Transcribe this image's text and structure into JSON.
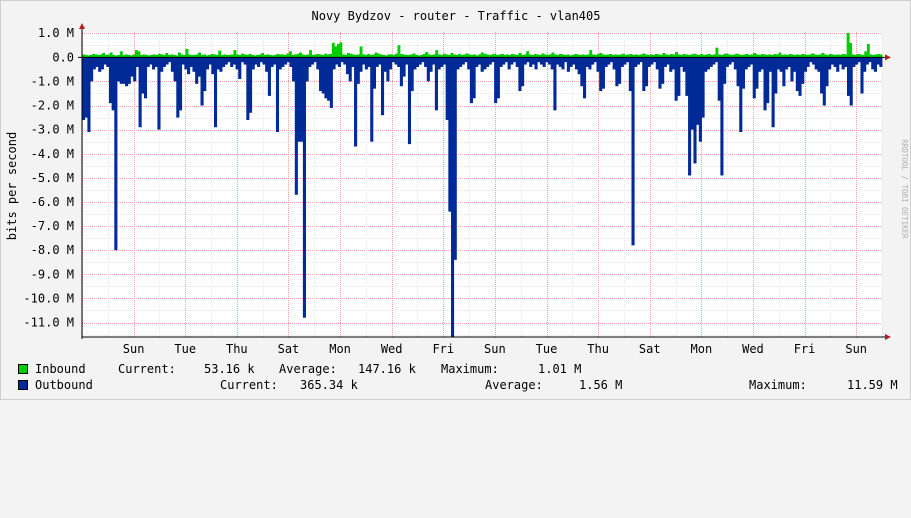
{
  "chart_data": {
    "type": "area",
    "title": "Novy Bydzov - router - Traffic - vlan405",
    "ylabel": "bits per second",
    "watermark": "RRDTOOL / TOBI OETIKER",
    "ylim": [
      -11.6,
      1.05
    ],
    "y_ticks": [
      {
        "value": 1.0,
        "label": "1.0 M"
      },
      {
        "value": 0.0,
        "label": "0.0"
      },
      {
        "value": -1.0,
        "label": "-1.0 M"
      },
      {
        "value": -2.0,
        "label": "-2.0 M"
      },
      {
        "value": -3.0,
        "label": "-3.0 M"
      },
      {
        "value": -4.0,
        "label": "-4.0 M"
      },
      {
        "value": -5.0,
        "label": "-5.0 M"
      },
      {
        "value": -6.0,
        "label": "-6.0 M"
      },
      {
        "value": -7.0,
        "label": "-7.0 M"
      },
      {
        "value": -8.0,
        "label": "-8.0 M"
      },
      {
        "value": -9.0,
        "label": "-9.0 M"
      },
      {
        "value": -10.0,
        "label": "-10.0 M"
      },
      {
        "value": -11.0,
        "label": "-11.0 M"
      }
    ],
    "days": [
      "Sun",
      "Tue",
      "Thu",
      "Sat",
      "Mon",
      "Wed",
      "Fri",
      "Sun",
      "Tue",
      "Thu",
      "Sat",
      "Mon",
      "Wed",
      "Fri",
      "Sun"
    ],
    "num_days": 15.5,
    "series": [
      {
        "name": "Inbound",
        "color": "#00cc00",
        "values": [
          0.12,
          0.1,
          0.08,
          0.1,
          0.14,
          0.12,
          0.1,
          0.12,
          0.18,
          0.1,
          0.12,
          0.2,
          0.1,
          0.08,
          0.1,
          0.25,
          0.1,
          0.12,
          0.1,
          0.08,
          0.12,
          0.3,
          0.25,
          0.1,
          0.12,
          0.1,
          0.08,
          0.1,
          0.12,
          0.1,
          0.15,
          0.12,
          0.1,
          0.18,
          0.1,
          0.12,
          0.1,
          0.08,
          0.2,
          0.12,
          0.1,
          0.35,
          0.12,
          0.1,
          0.1,
          0.12,
          0.2,
          0.1,
          0.12,
          0.08,
          0.1,
          0.14,
          0.12,
          0.1,
          0.28,
          0.1,
          0.12,
          0.1,
          0.1,
          0.12,
          0.3,
          0.12,
          0.1,
          0.15,
          0.12,
          0.1,
          0.14,
          0.1,
          0.08,
          0.1,
          0.12,
          0.18,
          0.1,
          0.12,
          0.1,
          0.08,
          0.1,
          0.14,
          0.12,
          0.12,
          0.1,
          0.16,
          0.25,
          0.1,
          0.12,
          0.14,
          0.2,
          0.12,
          0.1,
          0.12,
          0.3,
          0.1,
          0.12,
          0.14,
          0.12,
          0.1,
          0.15,
          0.12,
          0.14,
          0.6,
          0.45,
          0.55,
          0.62,
          0.12,
          0.1,
          0.18,
          0.15,
          0.12,
          0.1,
          0.12,
          0.45,
          0.12,
          0.1,
          0.14,
          0.1,
          0.12,
          0.2,
          0.15,
          0.12,
          0.1,
          0.08,
          0.12,
          0.12,
          0.1,
          0.15,
          0.5,
          0.14,
          0.12,
          0.1,
          0.1,
          0.12,
          0.16,
          0.1,
          0.08,
          0.1,
          0.14,
          0.22,
          0.12,
          0.1,
          0.12,
          0.3,
          0.12,
          0.1,
          0.15,
          0.12,
          0.1,
          0.18,
          0.12,
          0.1,
          0.14,
          0.1,
          0.12,
          0.16,
          0.12,
          0.1,
          0.12,
          0.08,
          0.12,
          0.2,
          0.15,
          0.12,
          0.1,
          0.12,
          0.15,
          0.1,
          0.12,
          0.14,
          0.1,
          0.12,
          0.1,
          0.14,
          0.12,
          0.1,
          0.18,
          0.1,
          0.12,
          0.25,
          0.12,
          0.1,
          0.14,
          0.12,
          0.1,
          0.16,
          0.12,
          0.1,
          0.12,
          0.2,
          0.12,
          0.1,
          0.14,
          0.12,
          0.1,
          0.12,
          0.08,
          0.1,
          0.14,
          0.12,
          0.1,
          0.12,
          0.1,
          0.12,
          0.3,
          0.12,
          0.1,
          0.14,
          0.18,
          0.12,
          0.1,
          0.12,
          0.14,
          0.1,
          0.12,
          0.1,
          0.12,
          0.15,
          0.1,
          0.12,
          0.14,
          0.1,
          0.12,
          0.1,
          0.12,
          0.16,
          0.12,
          0.1,
          0.12,
          0.1,
          0.14,
          0.12,
          0.1,
          0.18,
          0.12,
          0.1,
          0.14,
          0.12,
          0.22,
          0.12,
          0.1,
          0.14,
          0.12,
          0.1,
          0.12,
          0.15,
          0.12,
          0.1,
          0.14,
          0.1,
          0.12,
          0.14,
          0.1,
          0.12,
          0.4,
          0.12,
          0.1,
          0.14,
          0.16,
          0.12,
          0.1,
          0.12,
          0.15,
          0.12,
          0.1,
          0.12,
          0.14,
          0.1,
          0.12,
          0.18,
          0.12,
          0.1,
          0.14,
          0.12,
          0.1,
          0.12,
          0.1,
          0.14,
          0.12,
          0.2,
          0.1,
          0.12,
          0.1,
          0.14,
          0.12,
          0.1,
          0.12,
          0.1,
          0.14,
          0.12,
          0.1,
          0.12,
          0.16,
          0.12,
          0.1,
          0.12,
          0.18,
          0.12,
          0.1,
          0.14,
          0.12,
          0.1,
          0.12,
          0.1,
          0.14,
          0.12,
          1.01,
          0.6,
          0.12,
          0.1,
          0.14,
          0.12,
          0.1,
          0.25,
          0.55,
          0.12,
          0.1,
          0.12,
          0.14,
          0.12
        ]
      },
      {
        "name": "Outbound",
        "color": "#002a97",
        "values": [
          -2.6,
          -2.5,
          -3.1,
          -1.0,
          -0.5,
          -0.4,
          -0.6,
          -0.5,
          -0.3,
          -0.4,
          -1.9,
          -2.2,
          -8.0,
          -1.0,
          -1.1,
          -1.1,
          -1.2,
          -1.1,
          -0.8,
          -1.0,
          -0.4,
          -2.9,
          -1.5,
          -1.7,
          -0.4,
          -0.3,
          -0.5,
          -0.4,
          -3.0,
          -0.6,
          -0.4,
          -0.3,
          -0.2,
          -0.6,
          -1.0,
          -2.5,
          -2.2,
          -0.3,
          -0.5,
          -0.7,
          -0.4,
          -0.6,
          -1.1,
          -0.8,
          -2.0,
          -1.4,
          -0.5,
          -0.3,
          -0.7,
          -2.9,
          -0.5,
          -0.6,
          -0.4,
          -0.3,
          -0.2,
          -0.4,
          -0.3,
          -0.5,
          -0.9,
          -0.2,
          -0.3,
          -2.6,
          -2.3,
          -0.5,
          -0.3,
          -0.4,
          -0.2,
          -0.3,
          -0.6,
          -1.6,
          -0.4,
          -0.3,
          -3.1,
          -0.5,
          -0.4,
          -0.3,
          -0.2,
          -0.4,
          -1.0,
          -5.7,
          -3.5,
          -3.5,
          -10.8,
          -1.0,
          -0.4,
          -0.3,
          -0.2,
          -0.5,
          -1.4,
          -1.5,
          -1.7,
          -1.8,
          -2.1,
          -0.5,
          -0.3,
          -0.4,
          -0.2,
          -0.3,
          -0.7,
          -1.0,
          -0.4,
          -3.7,
          -1.1,
          -0.6,
          -0.3,
          -0.5,
          -0.4,
          -3.5,
          -1.3,
          -0.4,
          -0.3,
          -2.4,
          -0.6,
          -1.0,
          -0.5,
          -0.2,
          -0.3,
          -0.4,
          -1.2,
          -0.8,
          -0.3,
          -3.6,
          -1.4,
          -0.5,
          -0.4,
          -0.3,
          -0.2,
          -0.4,
          -1.0,
          -0.6,
          -0.3,
          -2.2,
          -0.5,
          -0.4,
          -0.3,
          -2.6,
          -6.4,
          -11.6,
          -8.4,
          -0.5,
          -0.4,
          -0.3,
          -0.2,
          -0.5,
          -1.9,
          -1.7,
          -0.4,
          -0.3,
          -0.6,
          -0.5,
          -0.4,
          -0.3,
          -0.2,
          -1.9,
          -1.7,
          -0.4,
          -0.3,
          -0.2,
          -0.5,
          -0.3,
          -0.2,
          -0.4,
          -1.4,
          -1.2,
          -0.3,
          -0.2,
          -0.4,
          -0.3,
          -0.5,
          -0.2,
          -0.3,
          -0.4,
          -0.2,
          -0.3,
          -0.5,
          -2.2,
          -0.3,
          -0.4,
          -0.5,
          -0.2,
          -0.6,
          -0.4,
          -0.3,
          -0.5,
          -0.7,
          -1.2,
          -1.7,
          -0.4,
          -0.5,
          -0.3,
          -0.2,
          -0.6,
          -1.4,
          -1.3,
          -0.4,
          -0.3,
          -0.2,
          -0.5,
          -1.2,
          -1.1,
          -0.4,
          -0.3,
          -0.2,
          -1.4,
          -7.8,
          -0.4,
          -0.3,
          -0.2,
          -1.4,
          -1.2,
          -0.4,
          -0.3,
          -0.2,
          -0.5,
          -1.3,
          -1.1,
          -0.4,
          -0.3,
          -0.6,
          -0.5,
          -1.8,
          -1.6,
          -0.4,
          -0.6,
          -1.6,
          -4.9,
          -3.0,
          -4.4,
          -2.8,
          -3.5,
          -2.5,
          -0.6,
          -0.5,
          -0.4,
          -0.3,
          -0.2,
          -1.8,
          -4.9,
          -1.1,
          -0.4,
          -0.3,
          -0.2,
          -0.5,
          -1.2,
          -3.1,
          -1.3,
          -0.5,
          -0.4,
          -0.3,
          -1.7,
          -1.3,
          -0.6,
          -0.5,
          -2.2,
          -1.9,
          -0.6,
          -2.9,
          -1.5,
          -0.5,
          -0.6,
          -1.2,
          -0.5,
          -0.4,
          -1.0,
          -0.6,
          -1.4,
          -1.6,
          -1.1,
          -0.6,
          -0.4,
          -0.2,
          -0.3,
          -0.5,
          -0.6,
          -1.5,
          -2.0,
          -1.2,
          -0.5,
          -0.3,
          -0.4,
          -0.6,
          -0.3,
          -0.5,
          -0.4,
          -1.6,
          -2.0,
          -0.4,
          -0.3,
          -0.2,
          -1.5,
          -0.6,
          -0.3,
          -0.2,
          -0.5,
          -0.6,
          -0.3,
          -0.4
        ]
      }
    ],
    "legend": {
      "inbound": {
        "label": "Inbound",
        "current_label": "Current:",
        "current": "53.16 k",
        "average_label": "Average:",
        "average": "147.16 k",
        "maximum_label": "Maximum:",
        "maximum": "1.01 M"
      },
      "outbound": {
        "label": "Outbound",
        "current_label": "Current:",
        "current": "365.34 k",
        "average_label": "Average:",
        "average": "1.56 M",
        "maximum_label": "Maximum:",
        "maximum": "11.59 M"
      }
    }
  }
}
